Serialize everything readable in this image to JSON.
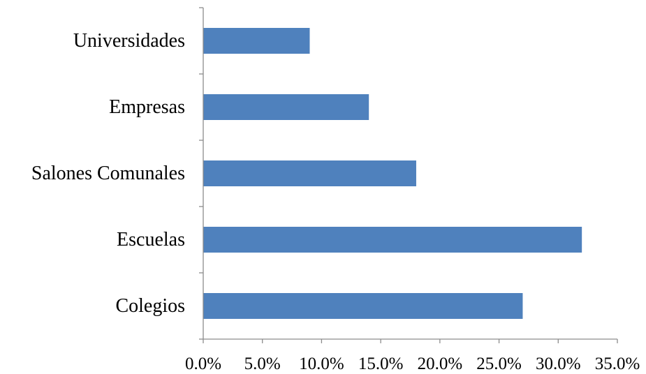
{
  "chart_data": {
    "type": "bar",
    "orientation": "horizontal",
    "categories": [
      "Universidades",
      "Empresas",
      "Salones Comunales",
      "Escuelas",
      "Colegios"
    ],
    "values": [
      9.0,
      14.0,
      18.0,
      32.0,
      27.0
    ],
    "value_unit": "%",
    "xlim": [
      0,
      35
    ],
    "x_ticks": [
      0,
      5,
      10,
      15,
      20,
      25,
      30,
      35
    ],
    "x_tick_labels": [
      "0.0%",
      "5.0%",
      "10.0%",
      "15.0%",
      "20.0%",
      "25.0%",
      "30.0%",
      "35.0%"
    ],
    "bar_color": "#4f81bd",
    "axis_color": "#8c8c8c",
    "grid": false,
    "legend": "none",
    "title": "",
    "xlabel": "",
    "ylabel": ""
  }
}
